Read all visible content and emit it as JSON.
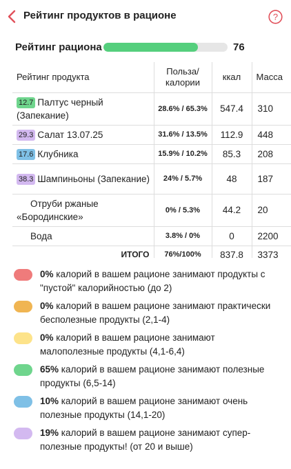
{
  "header": {
    "title": "Рейтинг продуктов в рационе",
    "back_icon": "chevron-left-icon",
    "help_icon": "question-circle-icon"
  },
  "rating": {
    "label": "Рейтинг рациона",
    "value": "76",
    "fill_fraction": 0.76,
    "bar_color": "#55cf7d"
  },
  "table": {
    "headers": {
      "product": "Рейтинг продукта",
      "benefit": "Польза/ калории",
      "kcal": "ккал",
      "mass": "Масса"
    },
    "rows": [
      {
        "badge": "12.7",
        "badge_color": "#6fd58d",
        "name": "Палтус черный (Запекание)",
        "benefit": "28.6% / 65.3%",
        "kcal": "547.4",
        "mass": "310"
      },
      {
        "badge": "29.3",
        "badge_color": "#d3b9f0",
        "name": "Салат 13.07.25",
        "benefit": "31.6% / 13.5%",
        "kcal": "112.9",
        "mass": "448"
      },
      {
        "badge": "17.6",
        "badge_color": "#7fc0e6",
        "name": "Клубника",
        "benefit": "15.9% / 10.2%",
        "kcal": "85.3",
        "mass": "208"
      },
      {
        "badge": "38.3",
        "badge_color": "#d3b9f0",
        "name": "Шампиньоны (Запекание)",
        "benefit": "24% / 5.7%",
        "kcal": "48",
        "mass": "187"
      },
      {
        "badge": "",
        "badge_color": "",
        "name": "Отруби ржаные «Бородинские»",
        "benefit": "0% / 5.3%",
        "kcal": "44.2",
        "mass": "20"
      },
      {
        "badge": "",
        "badge_color": "",
        "name": "Вода",
        "benefit": "3.8% / 0%",
        "kcal": "0",
        "mass": "2200"
      }
    ],
    "total": {
      "label": "ИТОГО",
      "benefit": "76%/100%",
      "kcal": "837.8",
      "mass": "3373"
    }
  },
  "legend": [
    {
      "color": "#ef7b7b",
      "pct": "0%",
      "text": " калорий в вашем рационе занимают продукты с \"пустой\" калорийностью (до 2)"
    },
    {
      "color": "#f0b552",
      "pct": "0%",
      "text": " калорий в вашем рационе занимают практически бесполезные продукты (2,1-4)"
    },
    {
      "color": "#fde38a",
      "pct": "0%",
      "text": " калорий в вашем рационе занимают малополезные продукты (4,1-6,4)"
    },
    {
      "color": "#6fd58d",
      "pct": "65%",
      "text": " калорий в вашем рационе занимают полезные продукты (6,5-14)"
    },
    {
      "color": "#7fc0e6",
      "pct": "10%",
      "text": " калорий в вашем рационе занимают очень полезные продукты (14,1-20)"
    },
    {
      "color": "#d3b9f0",
      "pct": "19%",
      "text": " калорий в вашем рационе занимают супер-полезные продукты! (от 20 и выше)"
    }
  ]
}
